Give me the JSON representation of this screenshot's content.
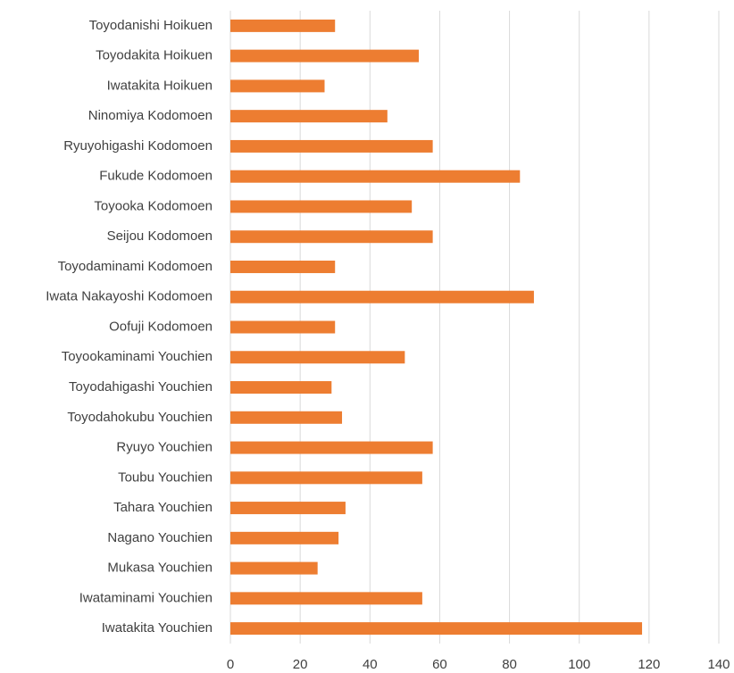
{
  "chart_data": {
    "type": "bar",
    "orientation": "horizontal",
    "categories": [
      "Toyodanishi Hoikuen",
      "Toyodakita Hoikuen",
      "Iwatakita Hoikuen",
      "Ninomiya Kodomoen",
      "Ryuyohigashi Kodomoen",
      "Fukude Kodomoen",
      "Toyooka Kodomoen",
      "Seijou Kodomoen",
      "Toyodaminami Kodomoen",
      "Iwata Nakayoshi Kodomoen",
      "Oofuji Kodomoen",
      "Toyookaminami Youchien",
      "Toyodahigashi Youchien",
      "Toyodahokubu Youchien",
      "Ryuyo Youchien",
      "Toubu Youchien",
      "Tahara Youchien",
      "Nagano Youchien",
      "Mukasa Youchien",
      "Iwataminami Youchien",
      "Iwatakita Youchien"
    ],
    "values": [
      30,
      54,
      27,
      45,
      58,
      83,
      52,
      58,
      30,
      87,
      30,
      50,
      29,
      32,
      58,
      55,
      33,
      31,
      25,
      55,
      118
    ],
    "color": "#ed7d31",
    "xlim": [
      0,
      140
    ],
    "xticks": [
      0,
      20,
      40,
      60,
      80,
      100,
      120,
      140
    ],
    "grid": true
  }
}
